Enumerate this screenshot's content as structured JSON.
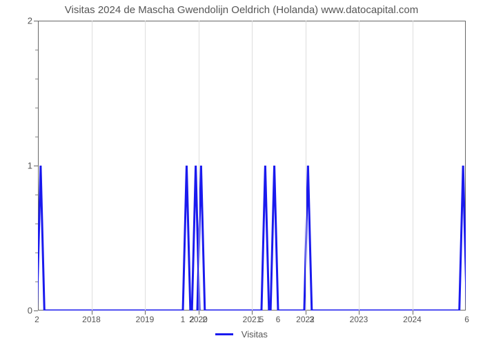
{
  "chart": {
    "type": "line",
    "title": "Visitas 2024 de Mascha Gwendolijn Oeldrich (Holanda) www.datocapital.com",
    "title_fontsize": 15,
    "title_color": "#555555",
    "background_color": "#ffffff",
    "plot_border_color": "#666666",
    "grid_color": "#dddddd",
    "line_color": "#1a1aee",
    "line_width": 3,
    "ylim": [
      0,
      2
    ],
    "y_ticks": [
      0,
      1,
      2
    ],
    "y_minor_intervals": 5,
    "x_range_years": [
      2017,
      2025
    ],
    "x_year_ticks": [
      2018,
      2019,
      2020,
      2021,
      2022,
      2023,
      2024
    ],
    "baseline_value": 0,
    "peaks": [
      {
        "x_year": 2017.05,
        "value": 1,
        "label": "2",
        "label_side": "left"
      },
      {
        "x_year": 2019.78,
        "value": 1,
        "label": "1",
        "label_side": "left"
      },
      {
        "x_year": 2019.95,
        "value": 1,
        "label": "2",
        "label_side": "left"
      },
      {
        "x_year": 2020.05,
        "value": 1,
        "label": "2",
        "label_side": "right"
      },
      {
        "x_year": 2021.25,
        "value": 1,
        "label": "5",
        "label_side": "left"
      },
      {
        "x_year": 2021.42,
        "value": 1,
        "label": "6",
        "label_side": "right"
      },
      {
        "x_year": 2022.05,
        "value": 1,
        "label": "3",
        "label_side": "right"
      },
      {
        "x_year": 2024.95,
        "value": 1,
        "label": "6",
        "label_side": "right"
      }
    ],
    "peak_half_width_years": 0.07,
    "legend_label": "Visitas"
  }
}
